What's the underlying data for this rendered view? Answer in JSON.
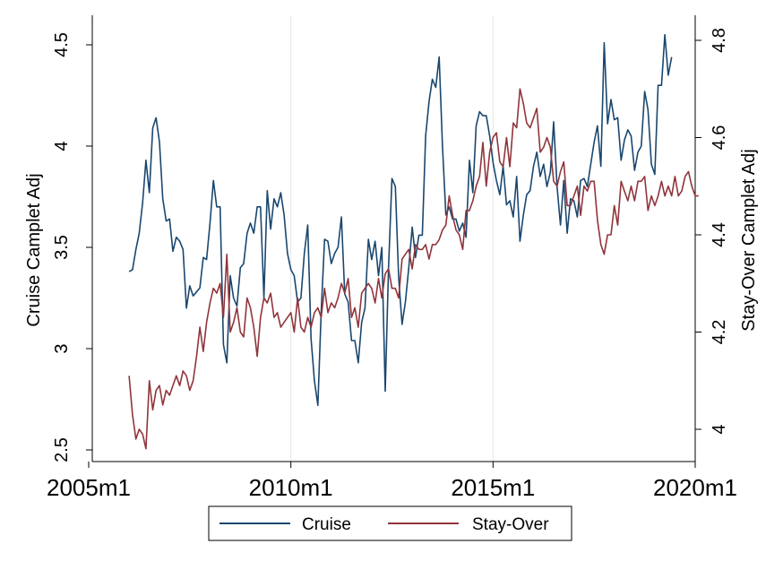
{
  "chart_data": {
    "type": "line",
    "title": "",
    "xlabel": "",
    "ylabel": "Cruise Camplet Adj",
    "y2label": "Stay-Over Camplet Adj",
    "x_ticks": [
      "2005m1",
      "2010m1",
      "2015m1",
      "2020m1"
    ],
    "x_range": [
      "2005m1",
      "2020m1"
    ],
    "y_left": {
      "range": [
        2.5,
        4.5
      ],
      "ticks": [
        "2.5",
        "3",
        "3.5",
        "4",
        "4.5"
      ]
    },
    "y_right": {
      "range": [
        4.0,
        4.8
      ],
      "ticks": [
        "4",
        "4.2",
        "4.4",
        "4.6",
        "4.8"
      ]
    },
    "grid": "vertical",
    "legend": "bottom",
    "series": [
      {
        "name": "Cruise",
        "axis": "left",
        "color": "#1a476f",
        "start": "2006m1",
        "values": [
          3.38,
          3.39,
          3.49,
          3.57,
          3.72,
          3.93,
          3.77,
          4.09,
          4.14,
          4.02,
          3.74,
          3.63,
          3.64,
          3.48,
          3.55,
          3.53,
          3.49,
          3.2,
          3.31,
          3.26,
          3.28,
          3.3,
          3.45,
          3.44,
          3.62,
          3.83,
          3.7,
          3.7,
          3.02,
          2.93,
          3.36,
          3.25,
          3.21,
          3.4,
          3.42,
          3.57,
          3.62,
          3.57,
          3.7,
          3.7,
          3.25,
          3.78,
          3.59,
          3.74,
          3.7,
          3.77,
          3.66,
          3.47,
          3.39,
          3.36,
          3.23,
          3.25,
          3.47,
          3.61,
          3.05,
          2.84,
          2.72,
          3.18,
          3.54,
          3.53,
          3.42,
          3.47,
          3.5,
          3.65,
          3.27,
          3.23,
          3.04,
          3.04,
          2.93,
          3.13,
          3.2,
          3.54,
          3.44,
          3.53,
          3.36,
          3.5,
          2.79,
          3.4,
          3.84,
          3.8,
          3.35,
          3.12,
          3.23,
          3.4,
          3.6,
          3.45,
          3.56,
          3.56,
          4.05,
          4.22,
          4.33,
          4.29,
          4.44,
          4.0,
          3.66,
          3.7,
          3.64,
          3.64,
          3.58,
          3.62,
          3.55,
          3.93,
          3.77,
          4.1,
          4.17,
          4.15,
          4.15,
          4.05,
          3.92,
          3.83,
          3.76,
          3.9,
          3.71,
          3.73,
          3.65,
          3.85,
          3.53,
          3.66,
          3.76,
          3.78,
          3.9,
          3.97,
          3.85,
          3.91,
          3.8,
          3.87,
          4.12,
          3.8,
          3.61,
          3.83,
          3.57,
          3.74,
          3.73,
          3.65,
          3.83,
          3.84,
          3.8,
          3.91,
          4.02,
          4.1,
          3.9,
          4.51,
          4.11,
          4.23,
          4.13,
          4.14,
          3.93,
          4.03,
          4.08,
          4.05,
          3.88,
          3.97,
          4.0,
          4.27,
          4.18,
          3.91,
          3.86,
          4.3,
          4.3,
          4.55,
          4.35,
          4.44
        ]
      },
      {
        "name": "Stay-Over",
        "axis": "right",
        "color": "#90353b",
        "start": "2006m1",
        "values": [
          4.11,
          4.03,
          3.98,
          4.0,
          3.99,
          3.96,
          4.1,
          4.04,
          4.08,
          4.09,
          4.05,
          4.08,
          4.07,
          4.09,
          4.11,
          4.09,
          4.12,
          4.11,
          4.08,
          4.1,
          4.15,
          4.21,
          4.16,
          4.22,
          4.26,
          4.29,
          4.28,
          4.3,
          4.23,
          4.36,
          4.2,
          4.22,
          4.25,
          4.2,
          4.19,
          4.27,
          4.25,
          4.21,
          4.15,
          4.23,
          4.27,
          4.26,
          4.28,
          4.23,
          4.24,
          4.21,
          4.22,
          4.23,
          4.24,
          4.2,
          4.27,
          4.21,
          4.2,
          4.23,
          4.21,
          4.24,
          4.25,
          4.23,
          4.29,
          4.24,
          4.26,
          4.25,
          4.27,
          4.3,
          4.28,
          4.31,
          4.23,
          4.25,
          4.21,
          4.28,
          4.29,
          4.3,
          4.29,
          4.26,
          4.31,
          4.27,
          4.32,
          4.33,
          4.29,
          4.29,
          4.27,
          4.35,
          4.36,
          4.37,
          4.33,
          4.38,
          4.37,
          4.37,
          4.38,
          4.35,
          4.38,
          4.38,
          4.39,
          4.41,
          4.42,
          4.48,
          4.44,
          4.41,
          4.4,
          4.37,
          4.45,
          4.45,
          4.47,
          4.5,
          4.52,
          4.59,
          4.5,
          4.57,
          4.6,
          4.61,
          4.55,
          4.54,
          4.6,
          4.54,
          4.63,
          4.62,
          4.7,
          4.67,
          4.63,
          4.62,
          4.64,
          4.66,
          4.57,
          4.58,
          4.6,
          4.58,
          4.51,
          4.5,
          4.53,
          4.55,
          4.46,
          4.46,
          4.48,
          4.5,
          4.44,
          4.5,
          4.49,
          4.51,
          4.51,
          4.43,
          4.38,
          4.36,
          4.4,
          4.4,
          4.46,
          4.42,
          4.51,
          4.49,
          4.47,
          4.5,
          4.47,
          4.51,
          4.51,
          4.52,
          4.45,
          4.48,
          4.46,
          4.48,
          4.51,
          4.48,
          4.5,
          4.48,
          4.52,
          4.48,
          4.49,
          4.52,
          4.53,
          4.5,
          4.48,
          4.48
        ]
      }
    ]
  }
}
